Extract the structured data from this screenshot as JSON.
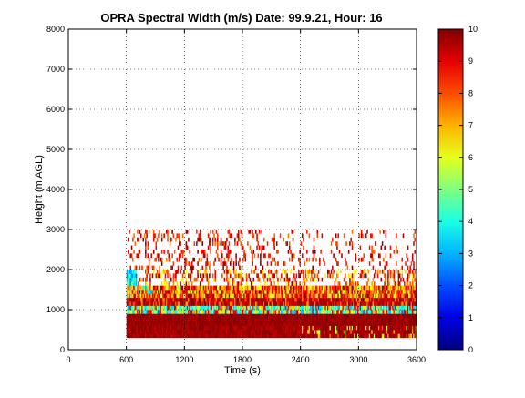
{
  "chart_data": {
    "type": "heatmap",
    "title": "OPRA Spectral Width (m/s)  Date: 99.9.21, Hour: 16",
    "xlabel": "Time (s)",
    "ylabel": "Height (m AGL)",
    "xlim": [
      0,
      3600
    ],
    "ylim": [
      0,
      8000
    ],
    "x_ticks": [
      0,
      600,
      1200,
      1800,
      2400,
      3000,
      3600
    ],
    "x_tick_labels": [
      "0",
      "600",
      "1200",
      "1800",
      "2400",
      "3000",
      "3600"
    ],
    "y_ticks": [
      0,
      1000,
      2000,
      3000,
      4000,
      5000,
      6000,
      7000,
      8000
    ],
    "y_tick_labels": [
      "0",
      "1000",
      "2000",
      "3000",
      "4000",
      "5000",
      "6000",
      "7000",
      "8000"
    ],
    "grid": true,
    "data_extent": {
      "x": [
        600,
        3600
      ],
      "y": [
        300,
        3000
      ]
    },
    "height_bands": [
      {
        "y": [
          300,
          600
        ],
        "level": "9-10",
        "note": "near saturated, occasional orange/yellow breaks after t=2400"
      },
      {
        "y": [
          600,
          900
        ],
        "level": "10"
      },
      {
        "y": [
          900,
          1100
        ],
        "level": "3-6",
        "note": "cyan/yellow mix"
      },
      {
        "y": [
          1100,
          1300
        ],
        "level": "8-10"
      },
      {
        "y": [
          1300,
          1600
        ],
        "level": "5-10",
        "note": "mixed yellow/orange/red"
      },
      {
        "y": [
          1600,
          2000
        ],
        "level": "2-10",
        "note": "sparse, cyan near t=600"
      },
      {
        "y": [
          2000,
          3000
        ],
        "level": "7-10",
        "note": "sparse red/orange streaks"
      }
    ],
    "colorbar": {
      "range": [
        0,
        10
      ],
      "ticks": [
        0,
        1,
        2,
        3,
        4,
        5,
        6,
        7,
        8,
        9,
        10
      ],
      "tick_labels": [
        "0",
        "1",
        "2",
        "3",
        "4",
        "5",
        "6",
        "7",
        "8",
        "9",
        "10"
      ],
      "colormap": "jet"
    }
  }
}
